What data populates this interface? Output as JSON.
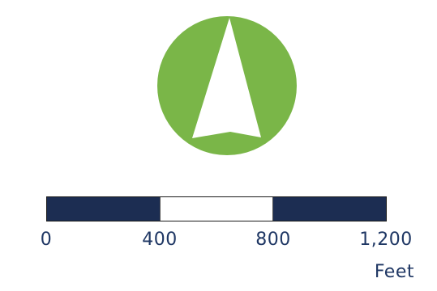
{
  "north_arrow": {
    "icon": "north-arrow-icon",
    "circle_color": "#7ab648",
    "arrow_color": "#ffffff"
  },
  "scale_bar": {
    "colors": {
      "dark": "#1c2d52",
      "light": "#ffffff",
      "text": "#1f3764"
    },
    "segments": [
      "dark",
      "light",
      "dark"
    ],
    "ticks": [
      "0",
      "400",
      "800",
      "1,200"
    ],
    "unit": "Feet"
  }
}
